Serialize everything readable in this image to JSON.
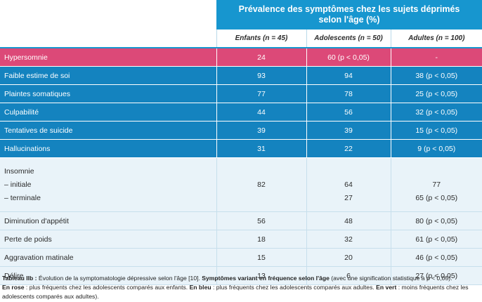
{
  "header": {
    "title_line1": "Prévalence des symptômes chez les sujets déprimés",
    "title_line2": "selon l'âge (%)",
    "columns": [
      "Enfants (n = 45)",
      "Adolescents (n = 50)",
      "Adultes (n = 100)"
    ]
  },
  "rows": [
    {
      "label": "Hypersomnie",
      "v1": "24",
      "v2": "60 (p < 0,05)",
      "v3": "-"
    },
    {
      "label": "Faible estime de soi",
      "v1": "93",
      "v2": "94",
      "v3": "38 (p < 0,05)"
    },
    {
      "label": "Plaintes somatiques",
      "v1": "77",
      "v2": "78",
      "v3": "25 (p < 0,05)"
    },
    {
      "label": "Culpabilité",
      "v1": "44",
      "v2": "56",
      "v3": "32 (p < 0,05)"
    },
    {
      "label": "Tentatives de suicide",
      "v1": "39",
      "v2": "39",
      "v3": "15 (p < 0,05)"
    },
    {
      "label": "Hallucinations",
      "v1": "31",
      "v2": "22",
      "v3": "9 (p < 0,05)"
    }
  ],
  "insomnie": {
    "label": "Insomnie",
    "sub1": "– initiale",
    "sub2": "– terminale",
    "v1": "82",
    "v2a": "64",
    "v2b": "27",
    "v3a": "77",
    "v3b": "65 (p < 0,05)"
  },
  "rows_light": [
    {
      "label": "Diminution d'appétit",
      "v1": "56",
      "v2": "48",
      "v3": "80 (p < 0,05)"
    },
    {
      "label": "Perte de poids",
      "v1": "18",
      "v2": "32",
      "v3": "61 (p < 0,05)"
    },
    {
      "label": "Aggravation matinale",
      "v1": "15",
      "v2": "20",
      "v3": "46 (p < 0,05)"
    },
    {
      "label": "Délire",
      "v1": "13",
      "v2": "6",
      "v3": "27 (p < 0,05)"
    }
  ],
  "caption": {
    "label": "Tableau IIb :",
    "text1": " Évolution de la symptomatologie dépressive selon l'âge [10]. ",
    "bold1": "Symptômes variant en fréquence selon l'âge",
    "text2": " (avec une signification statistique à p < 0,05).",
    "bold2": "En rose",
    "text3": " : plus fréquents chez les adolescents comparés aux enfants. ",
    "bold3": "En bleu",
    "text4": " : plus fréquents chez les adolescents comparés aux adultes. ",
    "bold4": "En vert",
    "text5": " : moins fréquents chez les adolescents comparés aux adultes)."
  },
  "colors": {
    "pink": "#dc4978",
    "blue": "#1483bf",
    "header": "#1796cf",
    "light": "#e9f3f9"
  }
}
